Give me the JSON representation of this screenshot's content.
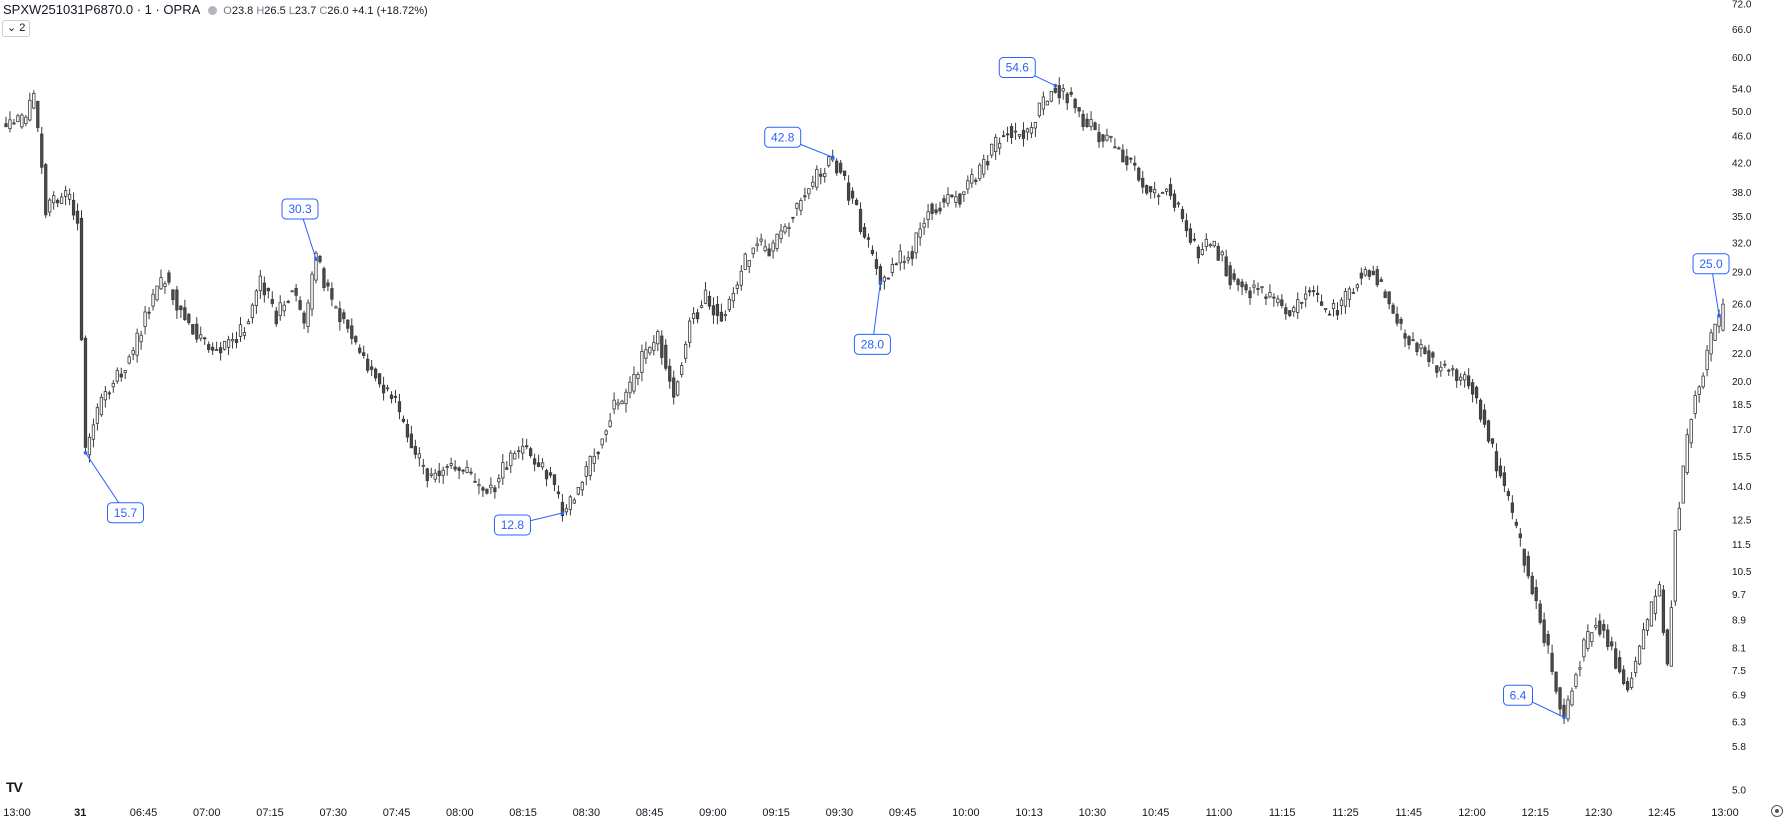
{
  "legend": {
    "symbol": "SPXW251031P6870.0 · 1 · OPRA",
    "o_label": "O",
    "o": "23.8",
    "h_label": "H",
    "h": "26.5",
    "l_label": "L",
    "l": "23.7",
    "c_label": "C",
    "c": "26.0",
    "change": "+4.1 (+18.72%)"
  },
  "collapse_button": {
    "label": "2",
    "icon": "chevron-down-icon"
  },
  "logo": {
    "text": "TV",
    "icon": "tradingview-logo-icon"
  },
  "settings": {
    "icon": "gear-icon"
  },
  "colors": {
    "up_body": "#ffffff",
    "down_body": "#4a4a4a",
    "outline": "#3a3a3a",
    "annotation": "#2962ff"
  },
  "chart_data": {
    "type": "candlestick",
    "title": "",
    "xlabel": "",
    "ylabel": "",
    "y_scale": "log",
    "ylim": [
      5.0,
      72.0
    ],
    "y_ticks": [
      5.0,
      5.8,
      6.3,
      6.9,
      7.5,
      8.1,
      8.9,
      9.7,
      10.5,
      11.5,
      12.5,
      14.0,
      15.5,
      17.0,
      18.5,
      20.0,
      22.0,
      24.0,
      26.0,
      29.0,
      32.0,
      35.0,
      38.0,
      42.0,
      46.0,
      50.0,
      54.0,
      60.0,
      66.0,
      72.0
    ],
    "x_ticks": [
      {
        "label": "13:00",
        "bold": false
      },
      {
        "label": "31",
        "bold": true
      },
      {
        "label": "06:45",
        "bold": false
      },
      {
        "label": "07:00",
        "bold": false
      },
      {
        "label": "07:15",
        "bold": false
      },
      {
        "label": "07:30",
        "bold": false
      },
      {
        "label": "07:45",
        "bold": false
      },
      {
        "label": "08:00",
        "bold": false
      },
      {
        "label": "08:15",
        "bold": false
      },
      {
        "label": "08:30",
        "bold": false
      },
      {
        "label": "08:45",
        "bold": false
      },
      {
        "label": "09:00",
        "bold": false
      },
      {
        "label": "09:15",
        "bold": false
      },
      {
        "label": "09:30",
        "bold": false
      },
      {
        "label": "09:45",
        "bold": false
      },
      {
        "label": "10:00",
        "bold": false
      },
      {
        "label": "10:13",
        "bold": false
      },
      {
        "label": "10:30",
        "bold": false
      },
      {
        "label": "10:45",
        "bold": false
      },
      {
        "label": "11:00",
        "bold": false
      },
      {
        "label": "11:15",
        "bold": false
      },
      {
        "label": "11:25",
        "bold": false
      },
      {
        "label": "11:45",
        "bold": false
      },
      {
        "label": "12:00",
        "bold": false
      },
      {
        "label": "12:15",
        "bold": false
      },
      {
        "label": "12:30",
        "bold": false
      },
      {
        "label": "12:45",
        "bold": false
      },
      {
        "label": "13:00",
        "bold": false
      }
    ],
    "path_points": [
      [
        0,
        47.5
      ],
      [
        4,
        48.0
      ],
      [
        7,
        52.0
      ],
      [
        9,
        42.0
      ],
      [
        10,
        36.0
      ],
      [
        12,
        36.5
      ],
      [
        15,
        37.5
      ],
      [
        18,
        35.0
      ],
      [
        20,
        15.7
      ],
      [
        24,
        19.0
      ],
      [
        28,
        20.5
      ],
      [
        32,
        22.0
      ],
      [
        36,
        26.0
      ],
      [
        40,
        28.5
      ],
      [
        44,
        25.5
      ],
      [
        48,
        23.5
      ],
      [
        52,
        22.0
      ],
      [
        56,
        23.0
      ],
      [
        60,
        24.0
      ],
      [
        64,
        28.0
      ],
      [
        68,
        25.0
      ],
      [
        72,
        27.5
      ],
      [
        75,
        24.0
      ],
      [
        78,
        30.3
      ],
      [
        82,
        26.0
      ],
      [
        86,
        24.0
      ],
      [
        90,
        21.5
      ],
      [
        94,
        20.0
      ],
      [
        98,
        18.5
      ],
      [
        102,
        16.0
      ],
      [
        106,
        14.5
      ],
      [
        110,
        14.8
      ],
      [
        114,
        15.0
      ],
      [
        118,
        14.2
      ],
      [
        122,
        13.8
      ],
      [
        126,
        15.2
      ],
      [
        130,
        16.0
      ],
      [
        134,
        15.0
      ],
      [
        137,
        14.5
      ],
      [
        140,
        12.8
      ],
      [
        144,
        14.0
      ],
      [
        148,
        15.5
      ],
      [
        152,
        18.0
      ],
      [
        156,
        19.0
      ],
      [
        160,
        21.5
      ],
      [
        164,
        23.5
      ],
      [
        168,
        19.0
      ],
      [
        172,
        24.5
      ],
      [
        176,
        26.5
      ],
      [
        180,
        25.0
      ],
      [
        184,
        28.0
      ],
      [
        188,
        32.0
      ],
      [
        192,
        31.0
      ],
      [
        196,
        34.0
      ],
      [
        200,
        37.0
      ],
      [
        204,
        40.0
      ],
      [
        208,
        42.8
      ],
      [
        212,
        38.0
      ],
      [
        216,
        33.0
      ],
      [
        220,
        28.0
      ],
      [
        224,
        30.0
      ],
      [
        228,
        31.0
      ],
      [
        232,
        36.0
      ],
      [
        236,
        37.0
      ],
      [
        240,
        37.5
      ],
      [
        244,
        40.0
      ],
      [
        248,
        44.0
      ],
      [
        252,
        47.0
      ],
      [
        256,
        46.0
      ],
      [
        260,
        50.0
      ],
      [
        264,
        54.6
      ],
      [
        268,
        52.0
      ],
      [
        272,
        48.0
      ],
      [
        276,
        46.0
      ],
      [
        280,
        44.0
      ],
      [
        284,
        41.0
      ],
      [
        288,
        37.5
      ],
      [
        292,
        39.0
      ],
      [
        296,
        34.5
      ],
      [
        300,
        31.0
      ],
      [
        304,
        32.0
      ],
      [
        308,
        28.5
      ],
      [
        312,
        27.5
      ],
      [
        316,
        27.0
      ],
      [
        320,
        26.0
      ],
      [
        324,
        25.5
      ],
      [
        328,
        27.5
      ],
      [
        332,
        25.0
      ],
      [
        336,
        26.0
      ],
      [
        340,
        28.5
      ],
      [
        344,
        29.0
      ],
      [
        348,
        26.0
      ],
      [
        352,
        23.0
      ],
      [
        356,
        22.5
      ],
      [
        360,
        21.0
      ],
      [
        364,
        20.5
      ],
      [
        368,
        20.0
      ],
      [
        372,
        17.5
      ],
      [
        376,
        14.5
      ],
      [
        380,
        12.0
      ],
      [
        384,
        10.0
      ],
      [
        388,
        8.0
      ],
      [
        392,
        6.4
      ],
      [
        396,
        7.8
      ],
      [
        400,
        9.0
      ],
      [
        404,
        8.0
      ],
      [
        408,
        7.0
      ],
      [
        412,
        8.5
      ],
      [
        416,
        10.0
      ],
      [
        418,
        7.5
      ],
      [
        420,
        12.0
      ],
      [
        424,
        18.0
      ],
      [
        428,
        22.0
      ],
      [
        432,
        26.0
      ]
    ],
    "candle_count": 433,
    "last_candle": {
      "open": 23.8,
      "high": 26.5,
      "low": 23.7,
      "close": 26.0
    },
    "annotations": [
      {
        "label": "15.7",
        "value": 15.7,
        "bar": 20
      },
      {
        "label": "30.3",
        "value": 30.3,
        "bar": 78
      },
      {
        "label": "12.8",
        "value": 12.8,
        "bar": 140
      },
      {
        "label": "42.8",
        "value": 42.8,
        "bar": 208
      },
      {
        "label": "28.0",
        "value": 28.0,
        "bar": 220
      },
      {
        "label": "54.6",
        "value": 54.6,
        "bar": 264
      },
      {
        "label": "6.4",
        "value": 6.4,
        "bar": 392
      },
      {
        "label": "25.0",
        "value": 25.0,
        "bar": 431
      }
    ]
  }
}
